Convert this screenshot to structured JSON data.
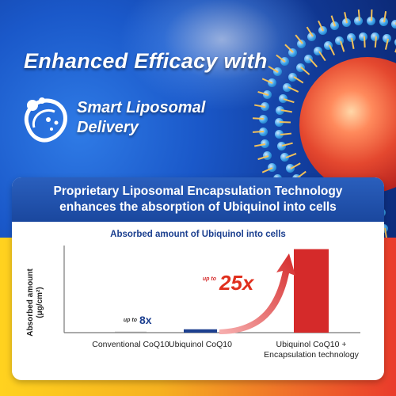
{
  "hero": {
    "headline": "Enhanced Efficacy with",
    "brand_line1": "Smart Liposomal",
    "brand_line2": "Delivery",
    "brand_icon": "liposome-logo-icon"
  },
  "panel": {
    "title_line1": "Proprietary Liposomal Encapsulation Technology",
    "title_line2": "enhances the absorption of Ubiquinol into cells"
  },
  "chart_data": {
    "type": "bar",
    "title": "Absorbed amount of Ubiquinol into cells",
    "ylabel_line1": "Absorbed amount",
    "ylabel_line2": "(μg/cm²)",
    "categories": [
      "Conventional CoQ10",
      "Ubiquinol CoQ10",
      "Ubiquinol CoQ10 + Encapsulation technology"
    ],
    "category_lines": [
      [
        "Conventional CoQ10"
      ],
      [
        "Ubiquinol CoQ10"
      ],
      [
        "Ubiquinol CoQ10 +",
        "Encapsulation technology"
      ]
    ],
    "values": [
      0.03,
      0.24,
      6.0
    ],
    "ylim": [
      0,
      6.6
    ],
    "grid": false,
    "bar_colors": [
      "#9a9a9a",
      "#1c3f8f",
      "#d52a2a"
    ],
    "annotations": [
      {
        "prefix": "up to",
        "text": "8x"
      },
      {
        "prefix": "up to",
        "text": "25x"
      }
    ]
  }
}
